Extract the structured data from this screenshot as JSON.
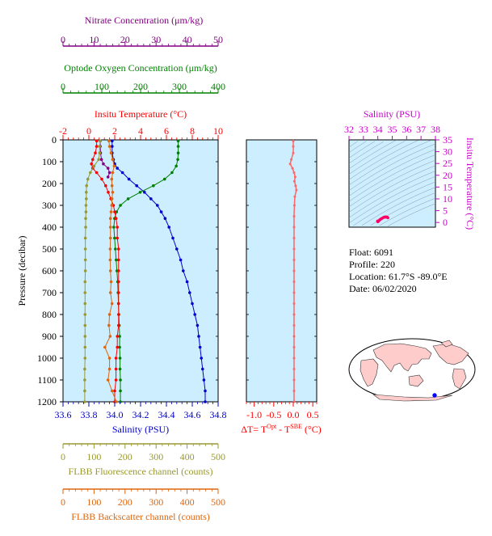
{
  "chart_data": [
    {
      "type": "line",
      "panel": "main-profile",
      "y_axis": {
        "label": "Pressure (decibar)",
        "range": [
          0,
          1200
        ],
        "inverted": true,
        "ticks": [
          "0",
          "100",
          "200",
          "300",
          "400",
          "500",
          "600",
          "700",
          "800",
          "900",
          "1000",
          "1100",
          "1200"
        ]
      },
      "axes": {
        "nitrate": {
          "label": "Nitrate Concentration (μm/kg)",
          "range": [
            0,
            50
          ],
          "ticks": [
            "0",
            "10",
            "20",
            "30",
            "40",
            "50"
          ],
          "color": "#800080"
        },
        "oxygen": {
          "label": "Optode Oxygen Concentration (μm/kg)",
          "range": [
            0,
            400
          ],
          "ticks": [
            "0",
            "100",
            "200",
            "300",
            "400"
          ],
          "color": "#008000"
        },
        "temperature": {
          "label": "Insitu Temperature (°C)",
          "range": [
            -2,
            10
          ],
          "ticks": [
            "-2",
            "0",
            "2",
            "4",
            "6",
            "8",
            "10"
          ],
          "color": "#ff0000"
        },
        "salinity": {
          "label": "Salinity (PSU)",
          "range": [
            33.6,
            34.8
          ],
          "ticks": [
            "33.6",
            "33.8",
            "34.0",
            "34.2",
            "34.4",
            "34.6",
            "34.8"
          ],
          "color": "#0000cc"
        },
        "fluorescence": {
          "label": "FLBB Fluorescence channel (counts)",
          "range": [
            0,
            500
          ],
          "ticks": [
            "0",
            "100",
            "200",
            "300",
            "400",
            "500"
          ],
          "color": "#999933"
        },
        "backscatter": {
          "label": "FLBB Backscatter channel (counts)",
          "range": [
            0,
            500
          ],
          "ticks": [
            "0",
            "100",
            "200",
            "300",
            "400",
            "500"
          ],
          "color": "#dd6611"
        }
      },
      "series": [
        {
          "axis": "salinity",
          "color": "#0000cc",
          "pressure": [
            5,
            30,
            60,
            90,
            110,
            130,
            150,
            180,
            210,
            240,
            270,
            300,
            330,
            360,
            400,
            450,
            500,
            550,
            600,
            650,
            700,
            750,
            800,
            850,
            900,
            950,
            1000,
            1050,
            1100,
            1150,
            1200
          ],
          "values": [
            33.98,
            33.98,
            33.98,
            33.99,
            34.0,
            34.02,
            34.06,
            34.11,
            34.17,
            34.23,
            34.28,
            34.33,
            34.36,
            34.39,
            34.42,
            34.45,
            34.48,
            34.51,
            34.53,
            34.56,
            34.58,
            34.6,
            34.62,
            34.64,
            34.65,
            34.66,
            34.67,
            34.68,
            34.69,
            34.7,
            34.7
          ]
        },
        {
          "axis": "oxygen",
          "color": "#008000",
          "pressure": [
            5,
            30,
            60,
            90,
            120,
            150,
            180,
            210,
            240,
            270,
            300,
            330,
            360,
            400,
            450,
            500,
            550,
            600,
            650,
            700,
            750,
            800,
            850,
            900,
            950,
            1000,
            1050,
            1100,
            1150,
            1200
          ],
          "values": [
            297,
            297,
            297,
            296,
            292,
            281,
            262,
            233,
            199,
            168,
            148,
            138,
            133,
            131,
            133,
            135,
            137,
            139,
            141,
            142,
            143,
            144,
            145,
            146,
            146,
            147,
            147,
            148,
            148,
            148
          ]
        },
        {
          "axis": "temperature",
          "color": "#ff0000",
          "pressure": [
            5,
            30,
            60,
            90,
            110,
            130,
            150,
            180,
            210,
            240,
            270,
            300,
            330,
            360,
            400,
            450,
            500,
            550,
            600,
            650,
            700,
            750,
            800,
            850,
            900,
            950,
            1000,
            1050,
            1100,
            1150,
            1200
          ],
          "values": [
            0.6,
            0.6,
            0.5,
            0.3,
            0.2,
            0.3,
            0.6,
            1.0,
            1.3,
            1.5,
            1.7,
            1.9,
            2.0,
            2.1,
            2.2,
            2.2,
            2.3,
            2.3,
            2.3,
            2.3,
            2.3,
            2.3,
            2.3,
            2.3,
            2.2,
            2.2,
            2.1,
            2.1,
            2.1,
            2.0,
            2.0
          ]
        },
        {
          "axis": "nitrate",
          "color": "#800080",
          "pressure": [
            5,
            30,
            60,
            90,
            110,
            130,
            150,
            170
          ],
          "values": [
            12.0,
            12.0,
            12.1,
            12.4,
            13.0,
            14.5,
            15.0,
            14.5
          ]
        },
        {
          "axis": "fluorescence",
          "color": "#999933",
          "pressure": [
            5,
            30,
            60,
            90,
            120,
            150,
            180,
            210,
            240,
            270,
            300,
            330,
            360,
            400,
            450,
            500,
            550,
            600,
            650,
            700,
            750,
            800,
            850,
            900,
            950,
            1000,
            1050,
            1100,
            1150,
            1200
          ],
          "values": [
            120,
            118,
            118,
            115,
            100,
            88,
            80,
            76,
            75,
            75,
            74,
            74,
            73,
            73,
            72,
            72,
            72,
            72,
            71,
            71,
            71,
            71,
            71,
            71,
            71,
            71,
            70,
            70,
            70,
            70
          ]
        },
        {
          "axis": "backscatter",
          "color": "#dd6611",
          "pressure": [
            5,
            30,
            60,
            90,
            120,
            150,
            180,
            210,
            240,
            270,
            300,
            330,
            360,
            400,
            450,
            500,
            550,
            600,
            650,
            700,
            750,
            800,
            850,
            900,
            950,
            1000,
            1050,
            1100,
            1150,
            1200
          ],
          "values": [
            148,
            150,
            155,
            160,
            165,
            160,
            157,
            158,
            160,
            158,
            157,
            155,
            153,
            153,
            153,
            152,
            152,
            153,
            155,
            153,
            158,
            150,
            148,
            152,
            135,
            150,
            150,
            145,
            158,
            172
          ]
        }
      ]
    },
    {
      "type": "line",
      "panel": "delta-temperature",
      "x_axis": {
        "label": "ΔT= T",
        "label_sup1": "Opt",
        "label_mid": " - T",
        "label_sup2": "SBE",
        "label_end": " (°C)",
        "range": [
          -1.2,
          0.6
        ],
        "ticks": [
          "-1.0",
          "-0.5",
          "0.0",
          "0.5"
        ],
        "color": "#ff0000"
      },
      "series": [
        {
          "color": "#ff6666",
          "pressure": [
            5,
            30,
            60,
            90,
            110,
            130,
            150,
            170,
            190,
            210,
            230,
            260,
            300,
            350,
            400,
            450,
            500,
            550,
            600,
            650,
            700,
            750,
            800,
            850,
            900,
            950,
            1000,
            1050,
            1100,
            1150,
            1200
          ],
          "values": [
            0.0,
            0.0,
            0.0,
            -0.05,
            -0.08,
            -0.02,
            0.02,
            0.05,
            0.03,
            0.06,
            0.08,
            0.04,
            0.03,
            0.02,
            0.02,
            0.02,
            0.02,
            0.02,
            0.02,
            0.02,
            0.02,
            0.02,
            0.02,
            0.02,
            0.02,
            0.02,
            0.02,
            0.02,
            0.02,
            0.02,
            0.02
          ]
        }
      ]
    },
    {
      "type": "scatter",
      "panel": "ts-diagram",
      "x_axis": {
        "label": "Salinity (PSU)",
        "range": [
          32,
          38
        ],
        "ticks": [
          "32",
          "33",
          "34",
          "35",
          "36",
          "37",
          "38"
        ],
        "color": "#cc00cc"
      },
      "y_axis": {
        "label": "Insitu Temperature (°C)",
        "range": [
          -2,
          35
        ],
        "ticks": [
          "0",
          "5",
          "10",
          "15",
          "20",
          "25",
          "30",
          "35"
        ],
        "color": "#cc00cc"
      },
      "points": {
        "salinity": [
          33.98,
          34.0,
          34.06,
          34.11,
          34.17,
          34.23,
          34.28,
          34.36,
          34.42,
          34.48,
          34.53,
          34.58,
          34.62,
          34.66,
          34.7
        ],
        "temperature": [
          0.6,
          0.3,
          0.6,
          1.0,
          1.3,
          1.5,
          1.7,
          2.0,
          2.2,
          2.3,
          2.3,
          2.3,
          2.3,
          2.2,
          2.0
        ],
        "color": "#ff0066"
      }
    }
  ],
  "float_info": {
    "float": "Float:  6091",
    "profile": "Profile:  220",
    "location": "Location:  61.7°S  -89.0°E",
    "date": "Date:  06/02/2020"
  },
  "colors": {
    "panel_bg": "#cceeff",
    "land": "#ffcccc",
    "ocean": "#ffffff",
    "marker": "#0000ff"
  }
}
